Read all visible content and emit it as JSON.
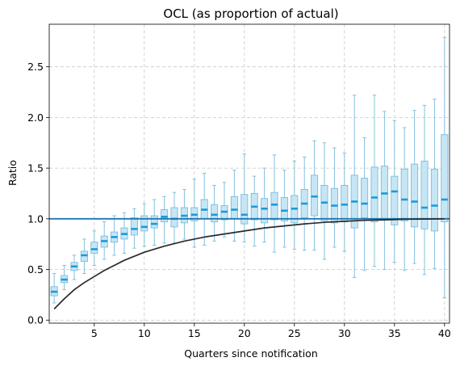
{
  "chart_data": {
    "type": "box",
    "title": "OCL (as proportion of actual)",
    "xlabel": "Quarters since notification",
    "ylabel": "Ratio",
    "xlim": [
      0.5,
      40.5
    ],
    "ylim": [
      -0.03,
      2.92
    ],
    "xticks": [
      5,
      10,
      15,
      20,
      25,
      30,
      35,
      40
    ],
    "yticks": [
      0.0,
      0.5,
      1.0,
      1.5,
      2.0,
      2.5
    ],
    "grid": true,
    "reference_line": 1.0,
    "colors": {
      "box_fill": "#c6e6f5",
      "box_edge": "#7bbbd8",
      "median": "#1a9ae0",
      "whisker": "#86c0dc",
      "reference": "#1f77b4",
      "curve": "#2b2b2b",
      "grid": "#c8c8c8"
    },
    "boxes": [
      {
        "x": 1,
        "wlow": 0.17,
        "q1": 0.24,
        "median": 0.28,
        "q3": 0.33,
        "whigh": 0.46
      },
      {
        "x": 2,
        "wlow": 0.3,
        "q1": 0.37,
        "median": 0.4,
        "q3": 0.44,
        "whigh": 0.54
      },
      {
        "x": 3,
        "wlow": 0.4,
        "q1": 0.49,
        "median": 0.53,
        "q3": 0.57,
        "whigh": 0.64
      },
      {
        "x": 4,
        "wlow": 0.46,
        "q1": 0.58,
        "median": 0.64,
        "q3": 0.68,
        "whigh": 0.8
      },
      {
        "x": 5,
        "wlow": 0.54,
        "q1": 0.66,
        "median": 0.7,
        "q3": 0.77,
        "whigh": 0.88
      },
      {
        "x": 6,
        "wlow": 0.6,
        "q1": 0.72,
        "median": 0.78,
        "q3": 0.83,
        "whigh": 0.97
      },
      {
        "x": 7,
        "wlow": 0.64,
        "q1": 0.77,
        "median": 0.82,
        "q3": 0.87,
        "whigh": 1.03
      },
      {
        "x": 8,
        "wlow": 0.66,
        "q1": 0.8,
        "median": 0.85,
        "q3": 0.91,
        "whigh": 1.06
      },
      {
        "x": 9,
        "wlow": 0.71,
        "q1": 0.84,
        "median": 0.9,
        "q3": 1.01,
        "whigh": 1.1
      },
      {
        "x": 10,
        "wlow": 0.73,
        "q1": 0.88,
        "median": 0.92,
        "q3": 1.03,
        "whigh": 1.15
      },
      {
        "x": 11,
        "wlow": 0.74,
        "q1": 0.91,
        "median": 0.95,
        "q3": 1.03,
        "whigh": 1.19
      },
      {
        "x": 12,
        "wlow": 0.76,
        "q1": 0.97,
        "median": 1.02,
        "q3": 1.09,
        "whigh": 1.22
      },
      {
        "x": 13,
        "wlow": 0.76,
        "q1": 0.92,
        "median": 1.0,
        "q3": 1.11,
        "whigh": 1.26
      },
      {
        "x": 14,
        "wlow": 0.8,
        "q1": 0.96,
        "median": 1.03,
        "q3": 1.11,
        "whigh": 1.29
      },
      {
        "x": 15,
        "wlow": 0.72,
        "q1": 0.98,
        "median": 1.04,
        "q3": 1.11,
        "whigh": 1.39
      },
      {
        "x": 16,
        "wlow": 0.74,
        "q1": 1.0,
        "median": 1.09,
        "q3": 1.19,
        "whigh": 1.45
      },
      {
        "x": 17,
        "wlow": 0.78,
        "q1": 0.97,
        "median": 1.04,
        "q3": 1.14,
        "whigh": 1.33
      },
      {
        "x": 18,
        "wlow": 0.82,
        "q1": 0.99,
        "median": 1.07,
        "q3": 1.13,
        "whigh": 1.36
      },
      {
        "x": 19,
        "wlow": 0.78,
        "q1": 1.0,
        "median": 1.09,
        "q3": 1.22,
        "whigh": 1.48
      },
      {
        "x": 20,
        "wlow": 0.77,
        "q1": 0.95,
        "median": 1.04,
        "q3": 1.24,
        "whigh": 1.64
      },
      {
        "x": 21,
        "wlow": 0.73,
        "q1": 0.99,
        "median": 1.12,
        "q3": 1.25,
        "whigh": 1.42
      },
      {
        "x": 22,
        "wlow": 0.77,
        "q1": 0.96,
        "median": 1.1,
        "q3": 1.2,
        "whigh": 1.5
      },
      {
        "x": 23,
        "wlow": 0.67,
        "q1": 0.99,
        "median": 1.14,
        "q3": 1.26,
        "whigh": 1.63
      },
      {
        "x": 24,
        "wlow": 0.72,
        "q1": 0.98,
        "median": 1.08,
        "q3": 1.21,
        "whigh": 1.48
      },
      {
        "x": 25,
        "wlow": 0.7,
        "q1": 0.96,
        "median": 1.1,
        "q3": 1.23,
        "whigh": 1.57
      },
      {
        "x": 26,
        "wlow": 0.69,
        "q1": 1.01,
        "median": 1.15,
        "q3": 1.29,
        "whigh": 1.61
      },
      {
        "x": 27,
        "wlow": 0.69,
        "q1": 1.03,
        "median": 1.22,
        "q3": 1.43,
        "whigh": 1.77
      },
      {
        "x": 28,
        "wlow": 0.6,
        "q1": 0.98,
        "median": 1.16,
        "q3": 1.33,
        "whigh": 1.75
      },
      {
        "x": 29,
        "wlow": 0.72,
        "q1": 0.96,
        "median": 1.13,
        "q3": 1.3,
        "whigh": 1.7
      },
      {
        "x": 30,
        "wlow": 0.68,
        "q1": 0.97,
        "median": 1.14,
        "q3": 1.33,
        "whigh": 1.65
      },
      {
        "x": 31,
        "wlow": 0.42,
        "q1": 0.91,
        "median": 1.17,
        "q3": 1.43,
        "whigh": 2.22
      },
      {
        "x": 32,
        "wlow": 0.49,
        "q1": 1.01,
        "median": 1.15,
        "q3": 1.4,
        "whigh": 1.8
      },
      {
        "x": 33,
        "wlow": 0.53,
        "q1": 0.97,
        "median": 1.21,
        "q3": 1.51,
        "whigh": 2.22
      },
      {
        "x": 34,
        "wlow": 0.5,
        "q1": 0.99,
        "median": 1.25,
        "q3": 1.52,
        "whigh": 2.06
      },
      {
        "x": 35,
        "wlow": 0.57,
        "q1": 0.94,
        "median": 1.27,
        "q3": 1.42,
        "whigh": 1.97
      },
      {
        "x": 36,
        "wlow": 0.49,
        "q1": 0.98,
        "median": 1.19,
        "q3": 1.49,
        "whigh": 1.9
      },
      {
        "x": 37,
        "wlow": 0.56,
        "q1": 0.92,
        "median": 1.17,
        "q3": 1.54,
        "whigh": 2.07
      },
      {
        "x": 38,
        "wlow": 0.45,
        "q1": 0.9,
        "median": 1.11,
        "q3": 1.57,
        "whigh": 2.12
      },
      {
        "x": 39,
        "wlow": 0.51,
        "q1": 0.88,
        "median": 1.13,
        "q3": 1.49,
        "whigh": 2.18
      },
      {
        "x": 40,
        "wlow": 0.22,
        "q1": 0.97,
        "median": 1.19,
        "q3": 1.83,
        "whigh": 2.79
      }
    ],
    "curve": {
      "x": [
        1,
        2,
        3,
        4,
        5,
        6,
        7,
        8,
        9,
        10,
        12,
        14,
        16,
        18,
        20,
        22,
        24,
        26,
        28,
        30,
        32,
        34,
        36,
        38,
        40
      ],
      "y": [
        0.11,
        0.21,
        0.3,
        0.37,
        0.43,
        0.49,
        0.54,
        0.59,
        0.63,
        0.67,
        0.73,
        0.78,
        0.82,
        0.85,
        0.88,
        0.91,
        0.93,
        0.95,
        0.965,
        0.975,
        0.985,
        0.99,
        0.995,
        0.998,
        1.0
      ]
    }
  }
}
